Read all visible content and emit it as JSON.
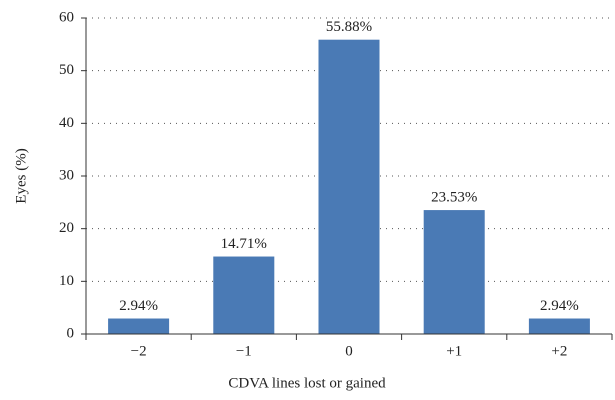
{
  "chart_data": {
    "type": "bar",
    "xlabel": "CDVA lines lost or gained",
    "ylabel": "Eyes (%)",
    "categories": [
      "−2",
      "−1",
      "0",
      "+1",
      "+2"
    ],
    "values": [
      2.94,
      14.71,
      55.88,
      23.53,
      2.94
    ],
    "value_labels": [
      "2.94%",
      "14.71%",
      "55.88%",
      "23.53%",
      "2.94%"
    ],
    "color": "#4a7ab5",
    "ylim": [
      0,
      60
    ],
    "yticks": [
      0,
      10,
      20,
      30,
      40,
      50,
      60
    ],
    "grid": true
  }
}
